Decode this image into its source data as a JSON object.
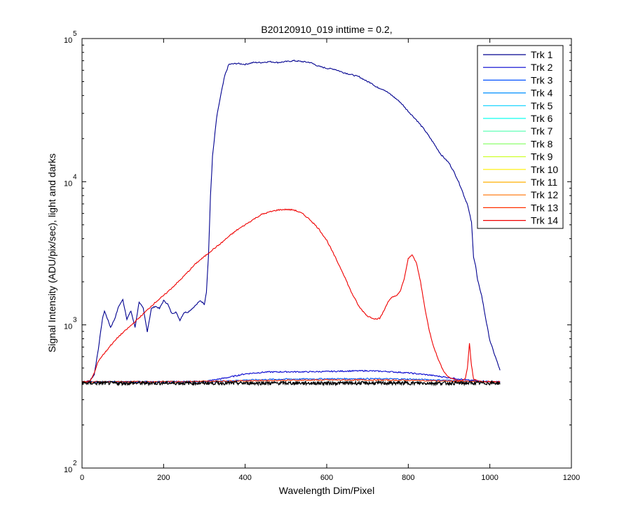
{
  "chart_data": {
    "type": "line",
    "title": "B20120910_019 inttime = 0.2,",
    "xlabel": "Wavelength Dim/Pixel",
    "ylabel": "Signal Intensity (ADU/pix/sec), light and darks",
    "xlim": [
      0,
      1200
    ],
    "ylim": [
      100,
      100000
    ],
    "yscale": "log",
    "grid": false,
    "legend_position": "top-right",
    "x_ticks": [
      {
        "value": 0,
        "label": "0"
      },
      {
        "value": 200,
        "label": "200"
      },
      {
        "value": 400,
        "label": "400"
      },
      {
        "value": 600,
        "label": "600"
      },
      {
        "value": 800,
        "label": "800"
      },
      {
        "value": 1000,
        "label": "1000"
      },
      {
        "value": 1200,
        "label": "1200"
      }
    ],
    "y_ticks": [
      {
        "value": 100,
        "base": "10",
        "exp": "2"
      },
      {
        "value": 1000,
        "base": "10",
        "exp": "3"
      },
      {
        "value": 10000,
        "base": "10",
        "exp": "4"
      },
      {
        "value": 100000,
        "base": "10",
        "exp": "5"
      }
    ],
    "legend": [
      {
        "label": "Trk 1",
        "color": "#00008f"
      },
      {
        "label": "Trk 2",
        "color": "#0000cf"
      },
      {
        "label": "Trk 3",
        "color": "#0050ff"
      },
      {
        "label": "Trk 4",
        "color": "#0090ff"
      },
      {
        "label": "Trk 5",
        "color": "#00cfff"
      },
      {
        "label": "Trk 6",
        "color": "#10ffef"
      },
      {
        "label": "Trk 7",
        "color": "#50ffaf"
      },
      {
        "label": "Trk 8",
        "color": "#90ff70"
      },
      {
        "label": "Trk 9",
        "color": "#cfff30"
      },
      {
        "label": "Trk 10",
        "color": "#ffef00"
      },
      {
        "label": "Trk 11",
        "color": "#ffaf00"
      },
      {
        "label": "Trk 12",
        "color": "#ff7000"
      },
      {
        "label": "Trk 13",
        "color": "#ff3000"
      },
      {
        "label": "Trk 14",
        "color": "#ef0000"
      }
    ],
    "series": [
      {
        "color": "#00008f",
        "x": [
          0,
          10,
          20,
          30,
          40,
          50,
          55,
          60,
          70,
          80,
          90,
          100,
          110,
          120,
          130,
          140,
          150,
          160,
          170,
          180,
          190,
          200,
          210,
          220,
          230,
          240,
          250,
          260,
          270,
          280,
          290,
          300,
          305,
          310,
          315,
          320,
          330,
          340,
          350,
          360,
          380,
          400,
          420,
          440,
          460,
          480,
          500,
          520,
          540,
          560,
          580,
          600,
          620,
          640,
          660,
          680,
          700,
          710,
          720,
          740,
          760,
          780,
          800,
          820,
          840,
          860,
          880,
          900,
          910,
          920,
          930,
          940,
          945,
          950,
          955,
          960,
          965,
          970,
          980,
          990,
          1000,
          1010,
          1020,
          1025
        ],
        "y": [
          400,
          400,
          410,
          450,
          680,
          1100,
          1250,
          1150,
          960,
          1100,
          1350,
          1500,
          1100,
          1250,
          960,
          1450,
          1300,
          900,
          1300,
          1350,
          1300,
          1480,
          1400,
          1200,
          1230,
          1080,
          1220,
          1230,
          1300,
          1380,
          1480,
          1400,
          1700,
          3000,
          8000,
          15000,
          28000,
          40000,
          55000,
          66000,
          67000,
          66000,
          68000,
          68000,
          69000,
          68000,
          69000,
          70000,
          69000,
          68000,
          64000,
          62000,
          61000,
          58000,
          56000,
          54000,
          50000,
          49000,
          46000,
          44000,
          40000,
          36000,
          31000,
          27000,
          23000,
          19000,
          15500,
          13500,
          12000,
          10500,
          9000,
          7500,
          7000,
          6000,
          5200,
          3000,
          2600,
          2050,
          1600,
          1100,
          780,
          640,
          530,
          480
        ]
      },
      {
        "color": "#0000cf",
        "x": [
          0,
          100,
          200,
          300,
          350,
          400,
          450,
          500,
          550,
          600,
          650,
          700,
          750,
          800,
          850,
          900,
          950,
          1000,
          1025
        ],
        "y": [
          400,
          400,
          401,
          402,
          425,
          455,
          468,
          470,
          470,
          472,
          476,
          478,
          472,
          462,
          447,
          428,
          410,
          402,
          400
        ]
      },
      {
        "color": "#0050ff",
        "x": [
          0,
          100,
          200,
          300,
          350,
          400,
          500,
          600,
          700,
          800,
          900,
          950,
          1000,
          1025
        ],
        "y": [
          400,
          400,
          400,
          401,
          405,
          412,
          418,
          420,
          421,
          418,
          410,
          404,
          401,
          400
        ]
      },
      {
        "color": "#ff3000",
        "x": [
          0,
          100,
          200,
          300,
          400,
          500,
          600,
          700,
          800,
          900,
          1000,
          1025
        ],
        "y": [
          400,
          400,
          401,
          403,
          407,
          410,
          412,
          412,
          410,
          405,
          401,
          400
        ]
      },
      {
        "color": "#ef0000",
        "x": [
          0,
          10,
          20,
          30,
          40,
          50,
          60,
          70,
          80,
          90,
          100,
          120,
          140,
          160,
          180,
          200,
          220,
          240,
          260,
          280,
          300,
          320,
          340,
          360,
          380,
          400,
          420,
          440,
          460,
          480,
          500,
          520,
          540,
          560,
          580,
          600,
          620,
          640,
          660,
          680,
          700,
          720,
          730,
          740,
          750,
          760,
          770,
          780,
          790,
          800,
          810,
          820,
          830,
          840,
          850,
          860,
          870,
          880,
          890,
          900,
          910,
          920,
          930,
          940,
          945,
          950,
          955,
          960,
          970,
          980,
          1000,
          1020,
          1025
        ],
        "y": [
          400,
          400,
          405,
          460,
          560,
          610,
          660,
          720,
          770,
          830,
          880,
          990,
          1120,
          1270,
          1440,
          1600,
          1810,
          2050,
          2350,
          2700,
          3000,
          3350,
          3700,
          4150,
          4600,
          5000,
          5450,
          5900,
          6150,
          6350,
          6400,
          6350,
          6000,
          5400,
          4700,
          3900,
          3000,
          2300,
          1700,
          1330,
          1150,
          1100,
          1110,
          1250,
          1450,
          1550,
          1600,
          1700,
          2100,
          2900,
          3100,
          2700,
          2000,
          1350,
          950,
          740,
          610,
          520,
          460,
          430,
          420,
          410,
          410,
          420,
          500,
          740,
          520,
          420,
          405,
          400,
          400,
          400,
          400
        ]
      },
      {
        "color": "#000000",
        "x": [
          0,
          1025
        ],
        "y": [
          392,
          392
        ],
        "noise": true
      }
    ]
  }
}
